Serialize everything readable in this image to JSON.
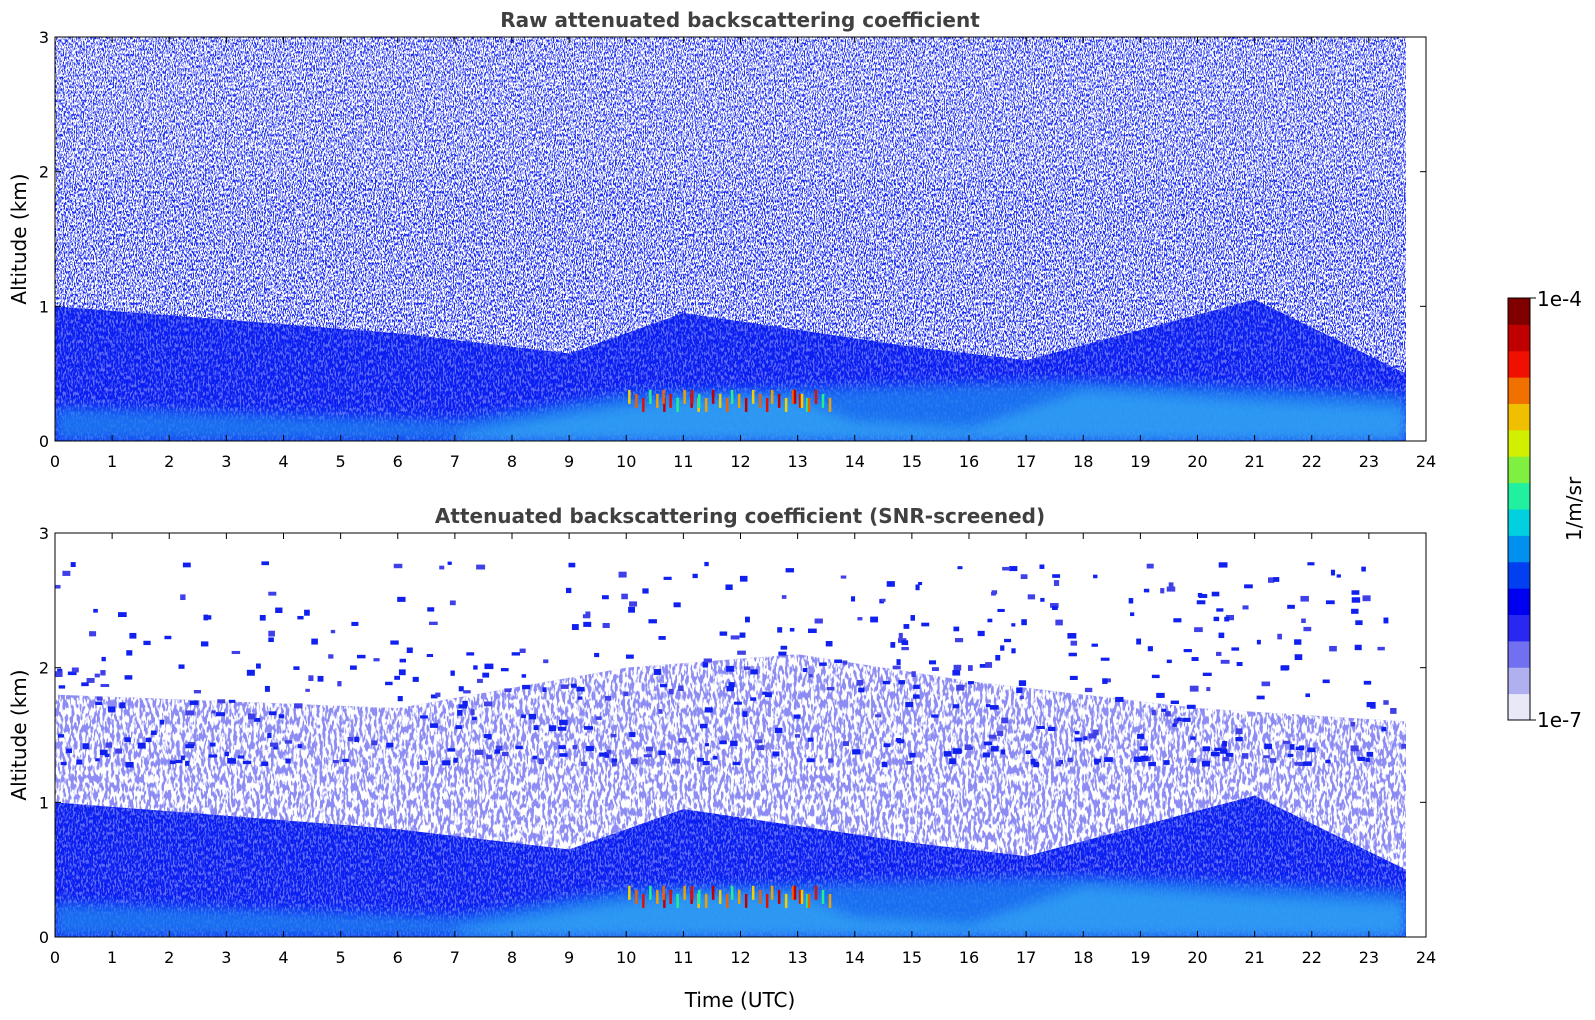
{
  "chart_data": [
    {
      "type": "heatmap",
      "title": "Raw attenuated backscattering coefficient",
      "xlabel": "",
      "ylabel": "Altitude (km)",
      "xlim": [
        0,
        24
      ],
      "ylim": [
        0,
        3
      ],
      "xticks": [
        "0",
        "1",
        "2",
        "3",
        "4",
        "5",
        "6",
        "7",
        "8",
        "9",
        "10",
        "11",
        "12",
        "13",
        "14",
        "15",
        "16",
        "17",
        "18",
        "19",
        "20",
        "21",
        "22",
        "23",
        "24"
      ],
      "yticks": [
        "0",
        "1",
        "2",
        "3"
      ],
      "data_time_end": 23.65,
      "features": {
        "dense_noise_above_boundary": true,
        "boundary_layer_top_km": [
          [
            0,
            1.0
          ],
          [
            6,
            0.8
          ],
          [
            9,
            0.65
          ],
          [
            11,
            0.95
          ],
          [
            15,
            0.7
          ],
          [
            17,
            0.6
          ],
          [
            21,
            1.05
          ],
          [
            23.65,
            0.5
          ]
        ],
        "low_layer_top_km": [
          [
            0,
            0.25
          ],
          [
            7,
            0.15
          ],
          [
            10,
            0.35
          ],
          [
            14,
            0.4
          ],
          [
            18,
            0.45
          ],
          [
            23.65,
            0.35
          ]
        ],
        "peak_signal_times_utc": [
          10.4,
          11.0,
          11.5,
          12.2,
          12.9,
          13.3
        ]
      }
    },
    {
      "type": "heatmap",
      "title": "Attenuated backscattering coefficient (SNR-screened)",
      "xlabel": "Time (UTC)",
      "ylabel": "Altitude (km)",
      "xlim": [
        0,
        24
      ],
      "ylim": [
        0,
        3
      ],
      "xticks": [
        "0",
        "1",
        "2",
        "3",
        "4",
        "5",
        "6",
        "7",
        "8",
        "9",
        "10",
        "11",
        "12",
        "13",
        "14",
        "15",
        "16",
        "17",
        "18",
        "19",
        "20",
        "21",
        "22",
        "23",
        "24"
      ],
      "yticks": [
        "0",
        "1",
        "2",
        "3"
      ],
      "data_time_end": 23.65,
      "features": {
        "screened_top_km": [
          [
            0,
            1.8
          ],
          [
            6,
            1.7
          ],
          [
            10,
            2.0
          ],
          [
            13,
            2.1
          ],
          [
            16,
            1.9
          ],
          [
            20,
            1.7
          ],
          [
            23.65,
            1.6
          ]
        ],
        "boundary_layer_top_km": [
          [
            0,
            1.0
          ],
          [
            6,
            0.8
          ],
          [
            9,
            0.65
          ],
          [
            11,
            0.95
          ],
          [
            15,
            0.7
          ],
          [
            17,
            0.6
          ],
          [
            21,
            1.05
          ],
          [
            23.65,
            0.5
          ]
        ],
        "peak_signal_times_utc": [
          10.4,
          11.0,
          11.5,
          12.2,
          12.9,
          13.3
        ]
      }
    }
  ],
  "colorbar": {
    "label": "1/m/sr",
    "max_label": "1e-4",
    "min_label": "1e-7",
    "scale": "log",
    "range": [
      1e-07,
      0.0001
    ],
    "colors": [
      "#e8e8f8",
      "#b0b0f0",
      "#7070f0",
      "#2828f0",
      "#0000f0",
      "#0040f0",
      "#0090f0",
      "#00d0e0",
      "#20f0a0",
      "#80f040",
      "#d0f000",
      "#f0c000",
      "#f07000",
      "#f01000",
      "#c00000",
      "#800000"
    ]
  }
}
